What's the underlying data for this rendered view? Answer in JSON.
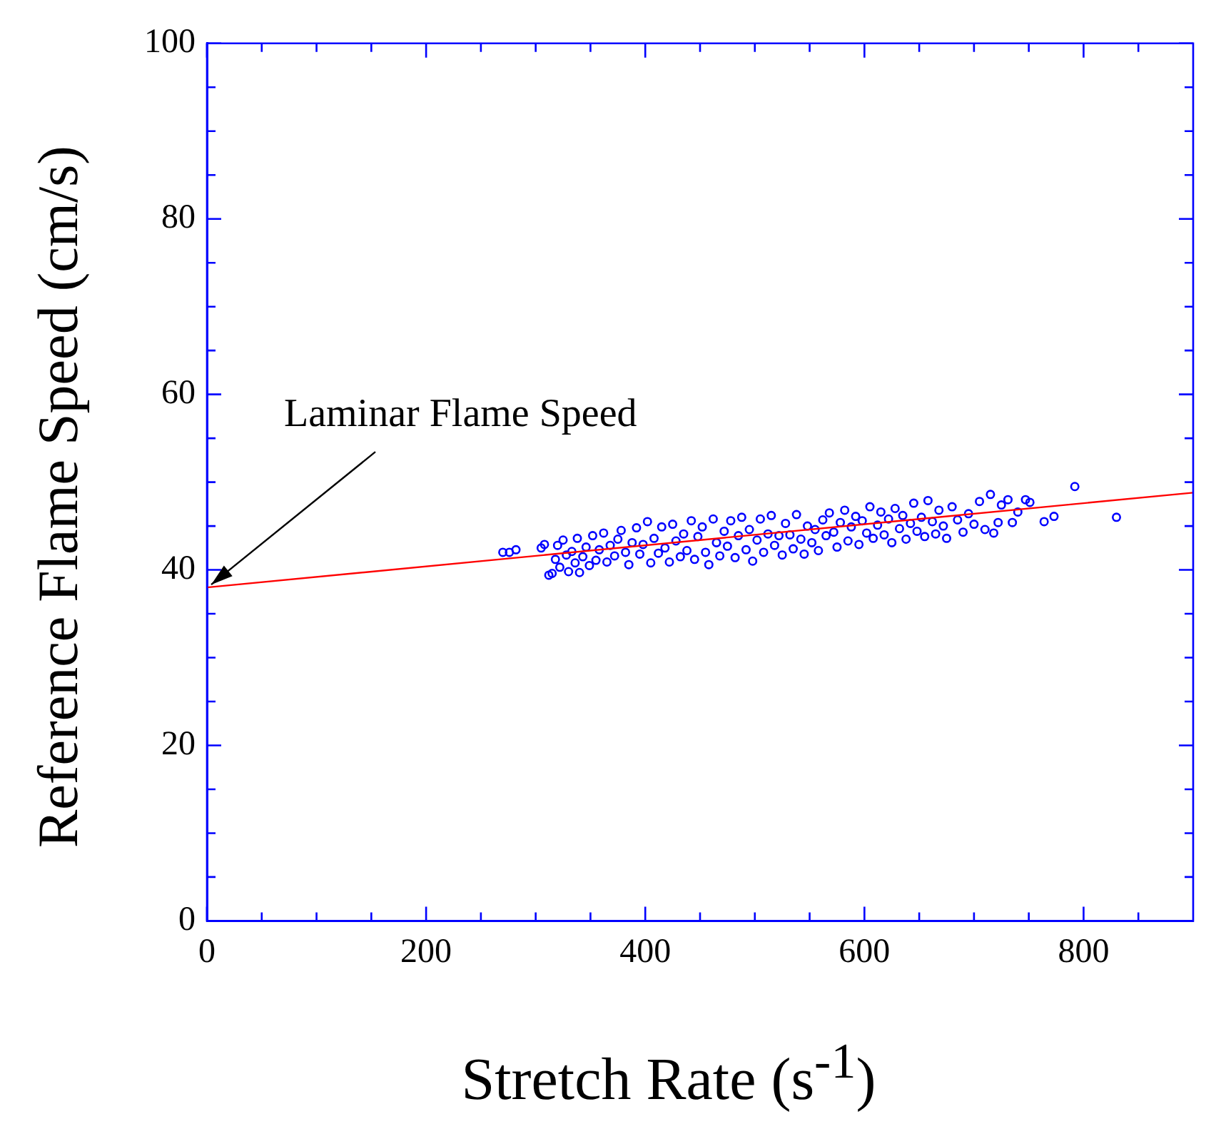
{
  "chart_data": {
    "type": "scatter",
    "xlabel": "Stretch Rate (s$^{-1}$)",
    "ylabel": "Reference Flame Speed (cm/s)",
    "xlim": [
      0,
      900
    ],
    "ylim": [
      0,
      100
    ],
    "xticks": [
      0,
      {
        "value": 50,
        "label": null
      },
      {
        "value": 100,
        "label": null
      },
      {
        "value": 150,
        "label": null
      },
      200,
      {
        "value": 250,
        "label": null
      },
      {
        "value": 300,
        "label": null
      },
      {
        "value": 350,
        "label": null
      },
      400,
      {
        "value": 450,
        "label": null
      },
      {
        "value": 500,
        "label": null
      },
      {
        "value": 550,
        "label": null
      },
      600,
      {
        "value": 650,
        "label": null
      },
      {
        "value": 700,
        "label": null
      },
      {
        "value": 750,
        "label": null
      },
      800,
      {
        "value": 850,
        "label": null
      }
    ],
    "yticks": [
      0,
      {
        "value": 5,
        "label": null
      },
      {
        "value": 10,
        "label": null
      },
      {
        "value": 15,
        "label": null
      },
      20,
      {
        "value": 25,
        "label": null
      },
      {
        "value": 30,
        "label": null
      },
      {
        "value": 35,
        "label": null
      },
      40,
      {
        "value": 45,
        "label": null
      },
      {
        "value": 50,
        "label": null
      },
      {
        "value": 55,
        "label": null
      },
      60,
      {
        "value": 65,
        "label": null
      },
      {
        "value": 70,
        "label": null
      },
      {
        "value": 75,
        "label": null
      },
      80,
      {
        "value": 85,
        "label": null
      },
      {
        "value": 90,
        "label": null
      },
      {
        "value": 95,
        "label": null
      },
      100
    ],
    "grid": false,
    "legend": false,
    "annotations": [
      {
        "text": "Laminar Flame Speed",
        "x": 0,
        "y": 38
      }
    ],
    "series": [
      {
        "color": "#0000ff",
        "marker": "circle",
        "x": [
          270,
          276,
          282,
          305,
          308,
          312,
          315,
          318,
          320,
          322,
          325,
          328,
          330,
          333,
          336,
          338,
          340,
          343,
          346,
          349,
          352,
          355,
          358,
          362,
          365,
          368,
          372,
          375,
          378,
          382,
          385,
          388,
          392,
          395,
          398,
          402,
          405,
          408,
          412,
          415,
          418,
          422,
          425,
          428,
          432,
          435,
          438,
          442,
          445,
          448,
          452,
          455,
          458,
          462,
          465,
          468,
          472,
          475,
          478,
          482,
          485,
          488,
          492,
          495,
          498,
          502,
          505,
          508,
          512,
          515,
          518,
          522,
          525,
          528,
          532,
          535,
          538,
          542,
          545,
          548,
          552,
          555,
          558,
          562,
          565,
          568,
          572,
          575,
          578,
          582,
          585,
          588,
          592,
          595,
          598,
          602,
          605,
          608,
          612,
          615,
          618,
          622,
          625,
          628,
          632,
          635,
          638,
          642,
          645,
          648,
          652,
          655,
          658,
          662,
          665,
          668,
          672,
          675,
          680,
          685,
          690,
          695,
          700,
          705,
          710,
          715,
          718,
          722,
          725,
          731,
          735,
          740,
          747,
          751,
          764,
          773,
          792,
          830
        ],
        "values": [
          42.0,
          42.0,
          42.3,
          42.5,
          42.9,
          39.4,
          39.6,
          41.2,
          42.8,
          40.3,
          43.4,
          41.7,
          39.8,
          42.1,
          40.8,
          43.6,
          39.7,
          41.5,
          42.6,
          40.5,
          43.9,
          41.1,
          42.3,
          44.2,
          40.9,
          42.8,
          41.6,
          43.5,
          44.5,
          42.0,
          40.6,
          43.1,
          44.8,
          41.8,
          42.9,
          45.5,
          40.8,
          43.6,
          41.9,
          44.9,
          42.5,
          40.9,
          45.2,
          43.3,
          41.5,
          44.1,
          42.2,
          45.6,
          41.2,
          43.8,
          44.9,
          42.0,
          40.6,
          45.8,
          43.1,
          41.6,
          44.4,
          42.7,
          45.6,
          41.4,
          43.9,
          46.0,
          42.3,
          44.6,
          41.0,
          43.4,
          45.8,
          42.0,
          44.1,
          46.2,
          42.8,
          43.9,
          41.7,
          45.3,
          44.0,
          42.4,
          46.3,
          43.5,
          41.8,
          45.0,
          43.1,
          44.6,
          42.2,
          45.7,
          43.9,
          46.5,
          44.3,
          42.6,
          45.4,
          46.8,
          43.3,
          44.9,
          46.1,
          42.9,
          45.6,
          44.2,
          47.2,
          43.6,
          45.1,
          46.6,
          44.0,
          45.8,
          43.1,
          47.0,
          44.7,
          46.2,
          43.5,
          45.3,
          47.6,
          44.4,
          46.0,
          43.8,
          47.9,
          45.5,
          44.1,
          46.8,
          45.0,
          43.6,
          47.2,
          45.7,
          44.3,
          46.4,
          45.2,
          47.8,
          44.6,
          48.6,
          44.2,
          45.4,
          47.4,
          48.0,
          45.4,
          46.6,
          48.0,
          47.7,
          45.5,
          46.1,
          49.5,
          46.0
        ]
      },
      {
        "type": "line",
        "color": "#ff0000",
        "marker": "none",
        "line_style": "solid",
        "x": [
          0,
          900
        ],
        "values": [
          38,
          48.8
        ]
      }
    ]
  }
}
